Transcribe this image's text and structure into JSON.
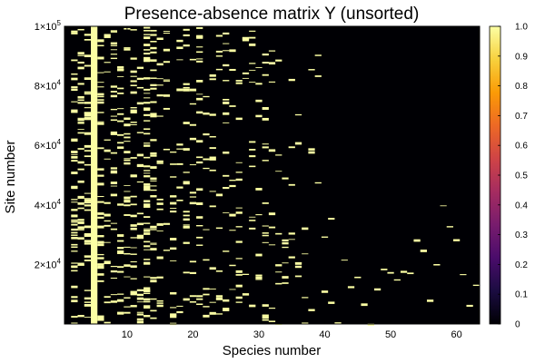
{
  "chart_data": {
    "type": "heatmap",
    "title": "Presence-absence matrix Y (unsorted)",
    "xlabel": "Species number",
    "ylabel": "Site number",
    "xlim": [
      0.5,
      63.5
    ],
    "ylim": [
      1,
      100000
    ],
    "x_ticks": [
      10,
      20,
      30,
      40,
      50,
      60
    ],
    "x_tick_labels": [
      "10",
      "20",
      "30",
      "40",
      "50",
      "60"
    ],
    "y_ticks": [
      20000,
      40000,
      60000,
      80000,
      100000
    ],
    "y_tick_labels": [
      {
        "base": "2×10",
        "exp": "4"
      },
      {
        "base": "4×10",
        "exp": "4"
      },
      {
        "base": "6×10",
        "exp": "4"
      },
      {
        "base": "8×10",
        "exp": "4"
      },
      {
        "base": "1×10",
        "exp": "5"
      }
    ],
    "colorbar": {
      "range": [
        0,
        1
      ],
      "ticks": [
        0,
        0.1,
        0.2,
        0.3,
        0.4,
        0.5,
        0.6,
        0.7,
        0.8,
        0.9,
        1.0
      ],
      "tick_labels": [
        "0",
        "0.1",
        "0.2",
        "0.3",
        "0.4",
        "0.5",
        "0.6",
        "0.7",
        "0.8",
        "0.9",
        "1.0"
      ],
      "colormap": "inferno",
      "colors": [
        "#000004",
        "#1b0c41",
        "#4a0c6b",
        "#781c6d",
        "#a52c60",
        "#cf4446",
        "#ed6925",
        "#fb9b06",
        "#f7d13d",
        "#fcffa4"
      ]
    },
    "values_present": 1,
    "values_absent": 0,
    "species_presence_density": [
      0,
      0.34,
      0.24,
      0.28,
      1.0,
      0.31,
      0.12,
      0.21,
      0.18,
      0.2,
      0.22,
      0.15,
      0.46,
      0.28,
      0.13,
      0.08,
      0.12,
      0.08,
      0.14,
      0.1,
      0.17,
      0.08,
      0.12,
      0.08,
      0.13,
      0.07,
      0.12,
      0.06,
      0.1,
      0.08,
      0.12,
      0.07,
      0.06,
      0.05,
      0.04,
      0.04,
      0.03,
      0.03,
      0.02,
      0.015,
      0.012,
      0.01,
      0.008,
      0.006,
      0.005,
      0.004,
      0.004,
      0.003,
      0.003,
      0.002,
      0.002,
      0.002,
      0.002,
      0.001,
      0.001,
      0.001,
      0.001,
      0.001,
      0.001,
      0.0005,
      0.0005,
      0.0005,
      0.0005
    ],
    "species_site_extent": [
      100000,
      100000,
      100000,
      100000,
      100000,
      100000,
      100000,
      100000,
      100000,
      100000,
      100000,
      100000,
      100000,
      100000,
      100000,
      100000,
      100000,
      100000,
      100000,
      100000,
      100000,
      100000,
      100000,
      100000,
      100000,
      100000,
      100000,
      100000,
      100000,
      100000,
      100000,
      100000,
      100000,
      95000,
      95000,
      93000,
      92000,
      92000,
      92000,
      40000,
      40000,
      40000,
      40000,
      40000,
      40000,
      40000,
      40000,
      40000,
      40000,
      40000,
      40000,
      40000,
      40000,
      40000,
      40000,
      40000,
      70000,
      40000,
      40000,
      40000,
      25000,
      25000,
      25000
    ],
    "grid": false,
    "legend": "colorbar-right"
  }
}
